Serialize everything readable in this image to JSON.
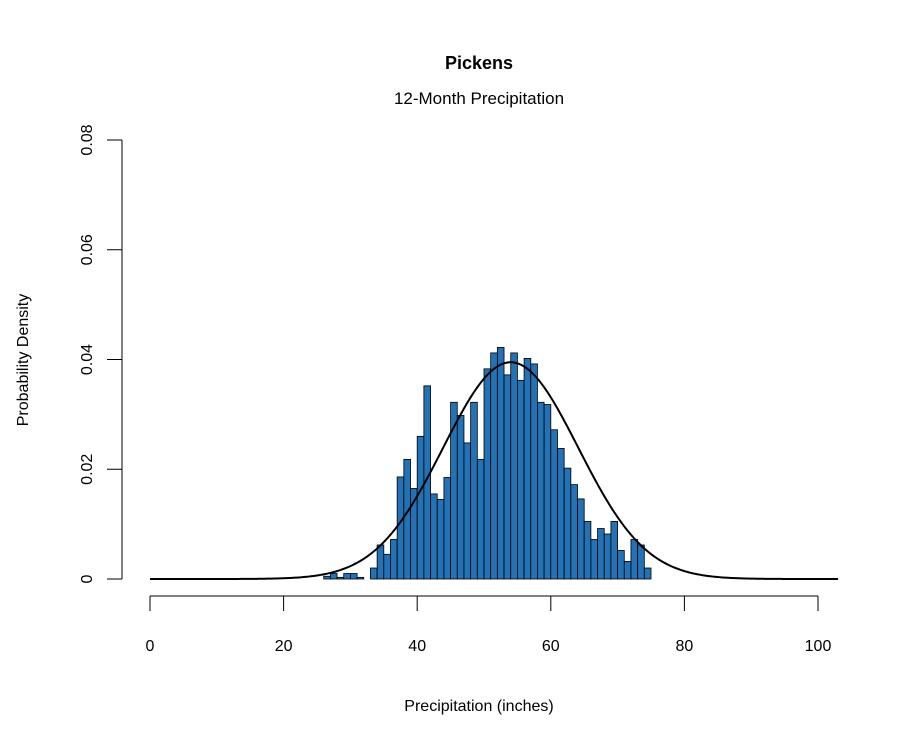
{
  "chart_data": {
    "type": "bar",
    "title": "Pickens",
    "subtitle": "12-Month Precipitation",
    "xlabel": "Precipitation (inches)",
    "ylabel": "Probability Density",
    "xlim": [
      0,
      103
    ],
    "ylim": [
      0,
      0.08
    ],
    "x_ticks": [
      0,
      20,
      40,
      60,
      80,
      100
    ],
    "x_tick_labels": [
      "0",
      "20",
      "40",
      "60",
      "80",
      "100"
    ],
    "y_ticks": [
      0,
      0.02,
      0.04,
      0.06,
      0.08
    ],
    "y_tick_labels": [
      "0",
      "0.02",
      "0.04",
      "0.06",
      "0.08"
    ],
    "bar_color": "#2272b5",
    "bin_width": 1,
    "histogram": {
      "bin_starts": [
        26,
        27,
        28,
        29,
        30,
        31,
        32,
        33,
        34,
        35,
        36,
        37,
        38,
        39,
        40,
        41,
        42,
        43,
        44,
        45,
        46,
        47,
        48,
        49,
        50,
        51,
        52,
        53,
        54,
        55,
        56,
        57,
        58,
        59,
        60,
        61,
        62,
        63,
        64,
        65,
        66,
        67,
        68,
        69,
        70,
        71,
        72,
        73,
        74,
        75,
        76,
        77,
        78,
        79,
        80
      ],
      "densities": [
        0.0005,
        0.001,
        0.0003,
        0.001,
        0.001,
        0.0003,
        0,
        0.002,
        0.0062,
        0.0045,
        0.0072,
        0.0186,
        0.0218,
        0.0165,
        0.026,
        0.0352,
        0.0155,
        0.0145,
        0.0185,
        0.0322,
        0.0298,
        0.0248,
        0.0322,
        0.0218,
        0.0383,
        0.0412,
        0.0422,
        0.0372,
        0.0412,
        0.0362,
        0.0402,
        0.0392,
        0.0322,
        0.0318,
        0.0272,
        0.0238,
        0.0202,
        0.0172,
        0.0146,
        0.0105,
        0.0072,
        0.0092,
        0.0082,
        0.0105,
        0.0052,
        0.0032,
        0.0072,
        0.0062,
        0.002,
        0,
        0,
        0,
        0,
        0,
        0
      ]
    },
    "normal_curve": {
      "name": "",
      "mean": 54,
      "sd": 10.1,
      "x_range": [
        0,
        103
      ],
      "color": "#000000"
    }
  }
}
